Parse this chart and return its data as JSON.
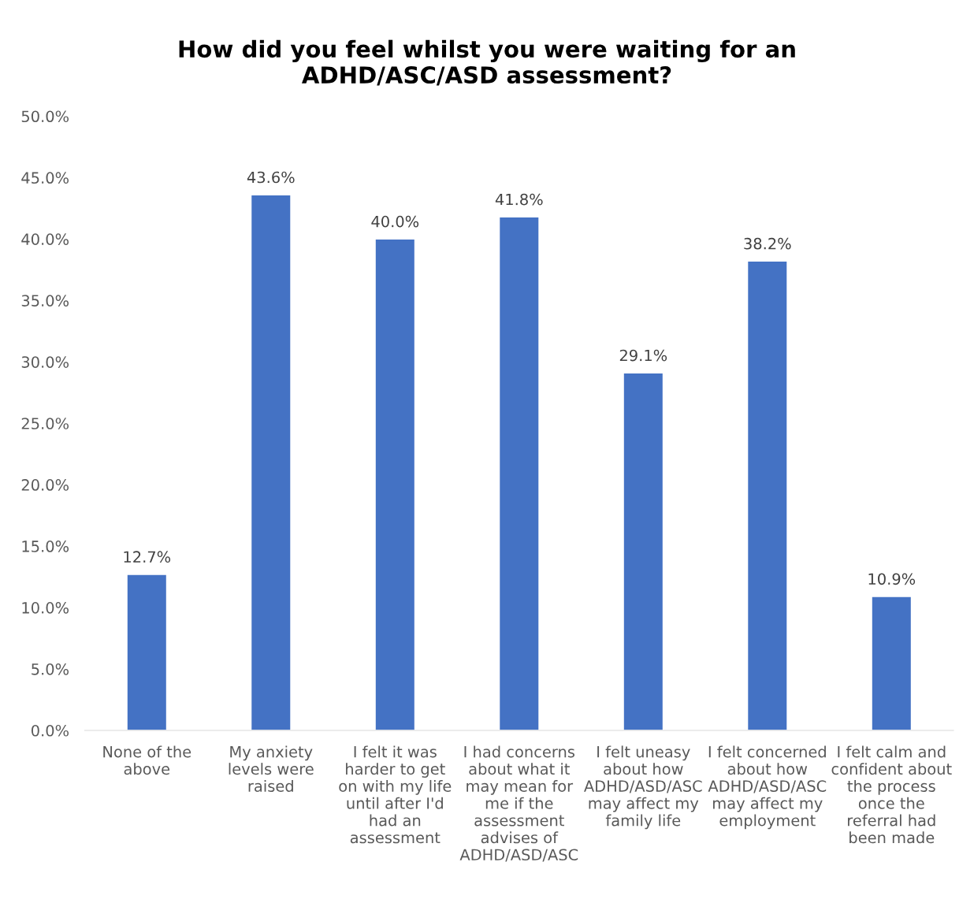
{
  "chart_data": {
    "type": "bar",
    "title": "How did you feel whilst you were waiting for an\nADHD/ASC/ASD assessment?",
    "categories": [
      "None of the\nabove",
      "My anxiety\nlevels were\nraised",
      "I felt it was\nharder to get\non with my life\nuntil after I'd\nhad an\nassessment",
      "I had concerns\nabout what it\nmay mean for\nme if the\nassessment\nadvises of\nADHD/ASD/ASC",
      "I felt uneasy\nabout how\nADHD/ASD/ASC\nmay affect my\nfamily life",
      "I felt concerned\nabout how\nADHD/ASD/ASC\nmay affect my\nemployment",
      "I felt calm and\nconfident about\nthe process\nonce the\nreferral had\nbeen made"
    ],
    "values": [
      12.7,
      43.6,
      40.0,
      41.8,
      29.1,
      38.2,
      10.9
    ],
    "value_labels": [
      "12.7%",
      "43.6%",
      "40.0%",
      "41.8%",
      "29.1%",
      "38.2%",
      "10.9%"
    ],
    "color": "#4472c4",
    "ylim": [
      0,
      50
    ],
    "yticks": [
      {
        "value": 0,
        "label": "0.0%"
      },
      {
        "value": 5,
        "label": "5.0%"
      },
      {
        "value": 10,
        "label": "10.0%"
      },
      {
        "value": 15,
        "label": "15.0%"
      },
      {
        "value": 20,
        "label": "20.0%"
      },
      {
        "value": 25,
        "label": "25.0%"
      },
      {
        "value": 30,
        "label": "30.0%"
      },
      {
        "value": 35,
        "label": "35.0%"
      },
      {
        "value": 40,
        "label": "40.0%"
      },
      {
        "value": 45,
        "label": "45.0%"
      },
      {
        "value": 50,
        "label": "50.0%"
      }
    ],
    "grid": false
  }
}
